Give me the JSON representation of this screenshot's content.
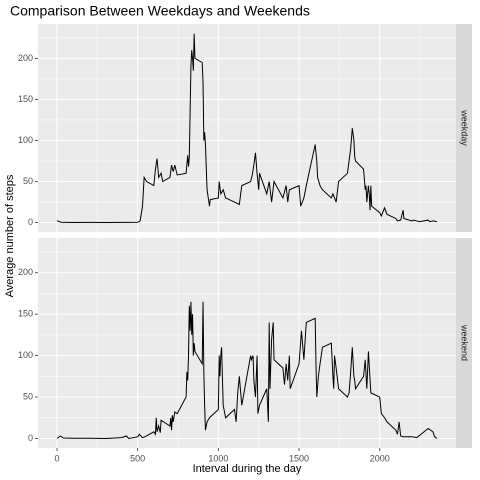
{
  "chart_data": {
    "type": "line",
    "title": "Comparison Between Weekdays and Weekends",
    "x_label": "Interval during the day",
    "y_label": "Average number of steps",
    "xlim": [
      -117.75,
      2472.75
    ],
    "xticks": [
      0,
      500,
      1000,
      1500,
      2000
    ],
    "xminor": [
      250,
      750,
      1250,
      1750,
      2250
    ],
    "ylim": [
      -11.5,
      241.9
    ],
    "yticks": [
      0,
      50,
      100,
      150,
      200
    ],
    "yminor": [
      25,
      75,
      125,
      175,
      225
    ],
    "grid": true,
    "color": "#000000",
    "panels": [
      {
        "label": "weekday",
        "x": [
          0,
          25,
          100,
          200,
          300,
          400,
          500,
          515,
          530,
          540,
          555,
          600,
          610,
          620,
          630,
          645,
          655,
          700,
          710,
          720,
          730,
          745,
          800,
          810,
          815,
          820,
          830,
          835,
          840,
          845,
          850,
          855,
          900,
          905,
          910,
          915,
          920,
          930,
          945,
          950,
          1000,
          1005,
          1015,
          1030,
          1045,
          1100,
          1130,
          1145,
          1200,
          1210,
          1220,
          1230,
          1240,
          1250,
          1255,
          1300,
          1315,
          1330,
          1345,
          1400,
          1420,
          1430,
          1440,
          1500,
          1510,
          1530,
          1545,
          1600,
          1610,
          1615,
          1630,
          1645,
          1700,
          1710,
          1730,
          1745,
          1800,
          1810,
          1820,
          1830,
          1840,
          1845,
          1850,
          1900,
          1910,
          1915,
          1920,
          1930,
          1935,
          1940,
          1945,
          1950,
          2000,
          2010,
          2030,
          2045,
          2100,
          2110,
          2130,
          2145,
          2150,
          2200,
          2210,
          2230,
          2245,
          2300,
          2310,
          2330,
          2355
        ],
        "values": [
          2.3,
          0.4,
          0.1,
          0.2,
          0.1,
          0.2,
          0.3,
          2,
          20,
          55,
          50,
          45,
          65,
          78,
          55,
          60,
          50,
          55,
          70,
          62,
          70,
          58,
          60,
          82,
          68,
          80,
          190,
          210,
          200,
          185,
          230,
          200,
          195,
          170,
          100,
          110,
          95,
          40,
          20,
          28,
          30,
          50,
          35,
          40,
          30,
          25,
          22,
          45,
          50,
          58,
          70,
          85,
          60,
          40,
          60,
          35,
          50,
          25,
          50,
          30,
          45,
          25,
          40,
          45,
          20,
          30,
          45,
          95,
          75,
          55,
          45,
          40,
          30,
          35,
          25,
          50,
          60,
          75,
          90,
          115,
          100,
          80,
          75,
          65,
          40,
          45,
          25,
          45,
          35,
          15,
          45,
          20,
          12,
          8,
          18,
          10,
          5,
          2,
          3,
          15,
          5,
          2,
          3,
          2,
          1,
          3,
          1,
          2,
          1
        ]
      },
      {
        "label": "weekend",
        "x": [
          0,
          20,
          40,
          100,
          200,
          300,
          400,
          430,
          445,
          500,
          510,
          530,
          545,
          600,
          610,
          615,
          620,
          630,
          640,
          645,
          700,
          705,
          710,
          715,
          720,
          730,
          745,
          800,
          805,
          810,
          815,
          820,
          825,
          830,
          835,
          840,
          845,
          850,
          855,
          900,
          905,
          910,
          915,
          920,
          930,
          945,
          1000,
          1005,
          1010,
          1015,
          1020,
          1030,
          1045,
          1100,
          1110,
          1120,
          1130,
          1145,
          1200,
          1205,
          1215,
          1220,
          1230,
          1240,
          1245,
          1255,
          1300,
          1310,
          1315,
          1320,
          1330,
          1340,
          1345,
          1400,
          1410,
          1420,
          1430,
          1440,
          1445,
          1500,
          1515,
          1530,
          1545,
          1600,
          1605,
          1610,
          1620,
          1630,
          1645,
          1700,
          1710,
          1715,
          1720,
          1730,
          1745,
          1800,
          1810,
          1820,
          1830,
          1840,
          1845,
          1850,
          1900,
          1910,
          1920,
          1930,
          1945,
          2000,
          2010,
          2030,
          2045,
          2100,
          2110,
          2120,
          2130,
          2145,
          2200,
          2230,
          2300,
          2330,
          2340,
          2355
        ],
        "values": [
          0,
          3,
          0.5,
          0.2,
          0.3,
          0,
          1,
          3,
          0,
          2,
          5,
          1,
          2,
          8,
          5,
          25,
          8,
          15,
          7,
          22,
          15,
          25,
          10,
          28,
          20,
          32,
          30,
          50,
          80,
          70,
          100,
          160,
          130,
          165,
          125,
          150,
          100,
          115,
          105,
          90,
          165,
          80,
          40,
          10,
          20,
          25,
          35,
          100,
          75,
          100,
          110,
          40,
          25,
          35,
          20,
          55,
          75,
          40,
          100,
          95,
          100,
          70,
          50,
          100,
          30,
          40,
          60,
          20,
          140,
          60,
          120,
          140,
          95,
          85,
          65,
          90,
          70,
          100,
          60,
          90,
          130,
          95,
          140,
          145,
          90,
          50,
          75,
          90,
          110,
          115,
          75,
          60,
          100,
          85,
          60,
          50,
          55,
          80,
          110,
          75,
          70,
          60,
          75,
          95,
          60,
          105,
          55,
          50,
          30,
          25,
          20,
          10,
          5,
          20,
          3,
          2,
          2,
          1,
          12,
          8,
          2,
          0
        ]
      }
    ]
  }
}
